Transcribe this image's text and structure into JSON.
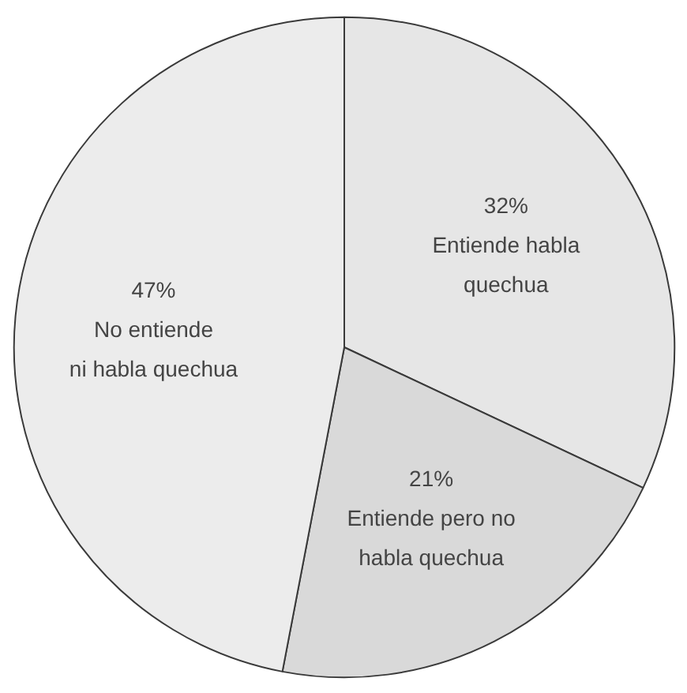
{
  "chart_data": {
    "type": "pie",
    "categories": [
      "Entiende habla\nquechua",
      "Entiende pero no\nhabla quechua",
      "No entiende\nni habla quechua"
    ],
    "values": [
      32,
      21,
      47
    ],
    "colors": [
      "#e6e6e6",
      "#d9d9d9",
      "#ececec"
    ],
    "value_labels": [
      "32%",
      "21%",
      "47%"
    ]
  }
}
